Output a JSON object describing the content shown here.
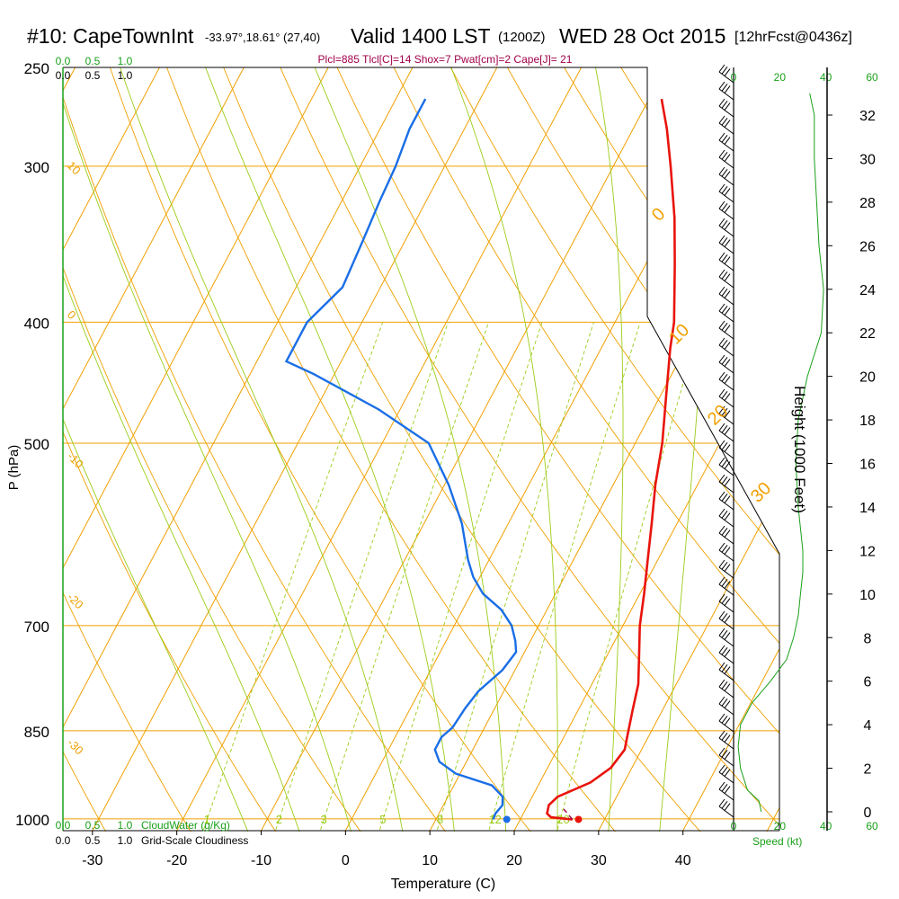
{
  "header": {
    "station": "#10: CapeTownInt",
    "location": "-33.97°,18.61° (27,40)",
    "valid": "Valid 1400 LST",
    "utc": "(1200Z)",
    "date": "WED 28 Oct 2015",
    "forecast": "[12hrFcst@0436z]",
    "indices": "Plcl=885 Tlcl[C]=14 Shox=7 Pwat[cm]=2 Cape[J]= 21"
  },
  "colors": {
    "temp": "#e8140c",
    "dew": "#1a6ee6",
    "isotherm": "#f0a000",
    "dry_adiabat": "#f0a000",
    "moist_adiabat": "#9ccc18",
    "mixing_ratio": "#9ccc18",
    "cloud": "#1aa01a",
    "indices": "#a0004a"
  },
  "chart_data": {
    "type": "skew-t",
    "title": "#10: CapeTownInt Valid 1400 LST WED 28 Oct 2015",
    "xlabel": "Temperature (C)",
    "ylabel": "P (hPa)",
    "right_label": "Height (1000 Feet)",
    "pressure_ticks": [
      250,
      300,
      400,
      500,
      700,
      850,
      1000
    ],
    "temperature_ticks": [
      -30,
      -20,
      -10,
      0,
      10,
      20,
      30,
      40
    ],
    "height_ticks": [
      0,
      2,
      4,
      6,
      8,
      10,
      12,
      14,
      16,
      18,
      20,
      22,
      24,
      26,
      28,
      30,
      32
    ],
    "xlim": [
      -33.5,
      46
    ],
    "ylim": [
      1022,
      250
    ],
    "isotherm_labels": [
      {
        "t": "10",
        "p": 300
      },
      {
        "t": "0",
        "p": 395
      },
      {
        "t": "-10",
        "p": 513
      },
      {
        "t": "-20",
        "p": 665
      },
      {
        "t": "-30",
        "p": 870
      }
    ],
    "theta_labels": [
      {
        "text": "0",
        "p": 338
      },
      {
        "text": "10",
        "p": 420
      },
      {
        "text": "20",
        "p": 477
      },
      {
        "text": "30",
        "p": 560
      }
    ],
    "mixing_ratio_labels": [
      "1",
      "2",
      "3",
      "5",
      "8",
      "12",
      "20"
    ],
    "temperature_profile": [
      [
        1001,
        26.2
      ],
      [
        997,
        23.5
      ],
      [
        990,
        22.8
      ],
      [
        975,
        22.5
      ],
      [
        960,
        23.0
      ],
      [
        935,
        26.0
      ],
      [
        910,
        27.5
      ],
      [
        880,
        28.0
      ],
      [
        860,
        27.5
      ],
      [
        820,
        26.5
      ],
      [
        780,
        25.5
      ],
      [
        740,
        23.8
      ],
      [
        700,
        22.0
      ],
      [
        660,
        20.5
      ],
      [
        620,
        18.8
      ],
      [
        580,
        17.0
      ],
      [
        540,
        15.0
      ],
      [
        500,
        13.2
      ],
      [
        460,
        10.8
      ],
      [
        420,
        8.2
      ],
      [
        400,
        7.0
      ],
      [
        360,
        3.5
      ],
      [
        330,
        0.5
      ],
      [
        300,
        -3.2
      ],
      [
        280,
        -6.0
      ],
      [
        265,
        -8.5
      ]
    ],
    "dewpoint_profile": [
      [
        1001,
        16.8
      ],
      [
        990,
        16.7
      ],
      [
        975,
        17.0
      ],
      [
        960,
        16.5
      ],
      [
        940,
        14.5
      ],
      [
        920,
        9.5
      ],
      [
        900,
        6.8
      ],
      [
        880,
        5.5
      ],
      [
        860,
        5.5
      ],
      [
        845,
        6.2
      ],
      [
        815,
        6.5
      ],
      [
        790,
        7.0
      ],
      [
        760,
        8.5
      ],
      [
        735,
        9.0
      ],
      [
        720,
        8.2
      ],
      [
        700,
        6.8
      ],
      [
        680,
        4.6
      ],
      [
        660,
        1.4
      ],
      [
        640,
        -0.8
      ],
      [
        620,
        -2.5
      ],
      [
        580,
        -5.5
      ],
      [
        540,
        -9.5
      ],
      [
        500,
        -14.5
      ],
      [
        470,
        -22.5
      ],
      [
        440,
        -32.5
      ],
      [
        430,
        -36.5
      ],
      [
        400,
        -36.5
      ],
      [
        375,
        -34.5
      ],
      [
        345,
        -35.0
      ],
      [
        320,
        -35.5
      ],
      [
        300,
        -35.8
      ],
      [
        280,
        -36.5
      ],
      [
        265,
        -36.5
      ]
    ],
    "surface_temp": 27.3,
    "surface_dewpoint": 18.8,
    "parcel_path": [
      [
        1001,
        26.2
      ],
      [
        982,
        24.5
      ]
    ],
    "cloud_water_ticks": [
      "0.0",
      "0.5",
      "1.0"
    ],
    "cloud_water_label": "CloudWater (g/Kg)",
    "cloudiness_ticks": [
      "0.0",
      "0.5",
      "1.0"
    ],
    "cloudiness_label": "Grid-Scale Cloudiness",
    "speed_ticks": [
      "0",
      "20",
      "40",
      "60"
    ],
    "speed_label": "Speed (kt)",
    "wind_speed_profile": [
      [
        0.0,
        12
      ],
      [
        0.5,
        11
      ],
      [
        1.0,
        6
      ],
      [
        2.0,
        3
      ],
      [
        3.0,
        2
      ],
      [
        4.0,
        3
      ],
      [
        5.0,
        8
      ],
      [
        6.0,
        16
      ],
      [
        7.0,
        23
      ],
      [
        8.0,
        26
      ],
      [
        9.0,
        28
      ],
      [
        10.0,
        29
      ],
      [
        11.0,
        30
      ],
      [
        12.0,
        30
      ],
      [
        14.0,
        28
      ],
      [
        16.0,
        27
      ],
      [
        18.0,
        28
      ],
      [
        20.0,
        32
      ],
      [
        22.0,
        38
      ],
      [
        24.0,
        39
      ],
      [
        26.0,
        37
      ],
      [
        28.0,
        36
      ],
      [
        30.0,
        35
      ],
      [
        32.0,
        35
      ],
      [
        33.0,
        33
      ]
    ]
  }
}
